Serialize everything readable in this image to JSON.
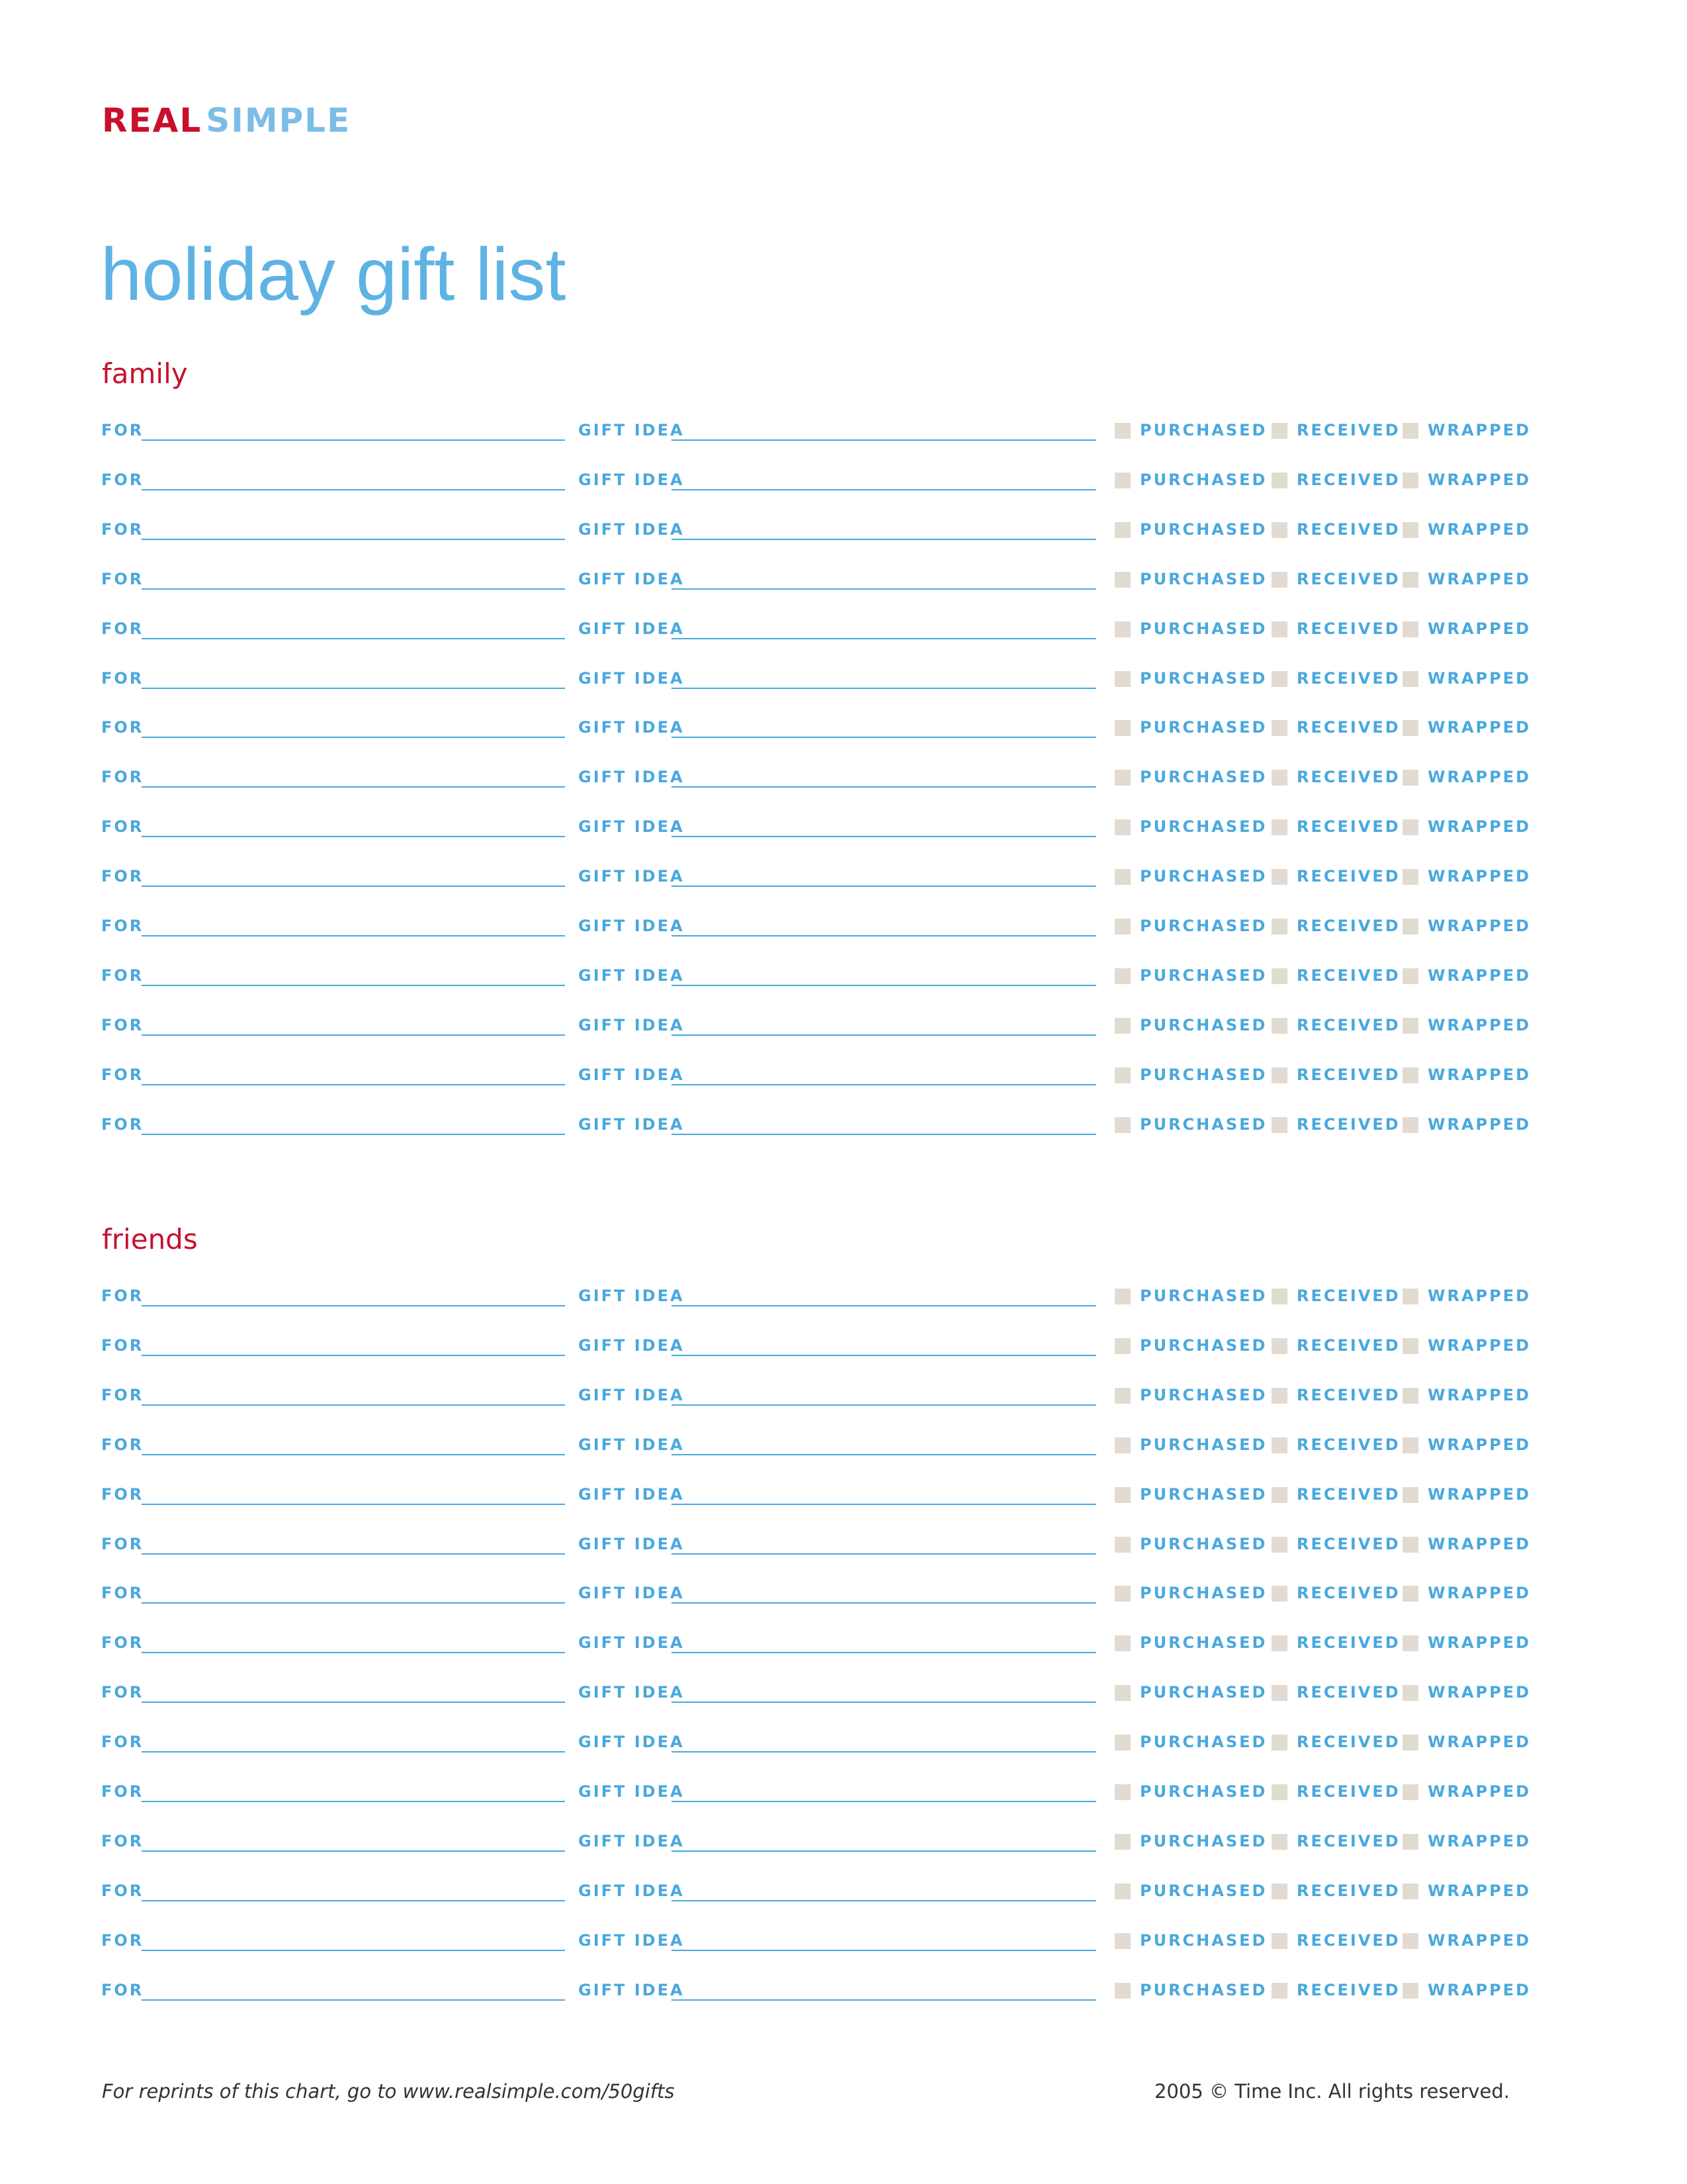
{
  "brand": {
    "part1": "REAL",
    "part2": "SIMPLE"
  },
  "page_title": "holiday gift list",
  "row_labels": {
    "for": "FOR",
    "gift_idea": "GIFT IDEA",
    "purchased": "PURCHASED",
    "received": "RECEIVED",
    "wrapped": "WRAPPED"
  },
  "sections": [
    {
      "key": "family",
      "heading": "family",
      "rows": 15
    },
    {
      "key": "friends",
      "heading": "friends",
      "rows": 15
    }
  ],
  "colors": {
    "brand_red": "#c8102e",
    "label_blue": "#4aa8de",
    "logo_light_blue": "#7cbde6",
    "checkbox": "#e2dbd1"
  },
  "footer": {
    "left": "For reprints of this chart, go to www.realsimple.com/50gifts",
    "right": "2005 © Time Inc. All rights reserved."
  }
}
